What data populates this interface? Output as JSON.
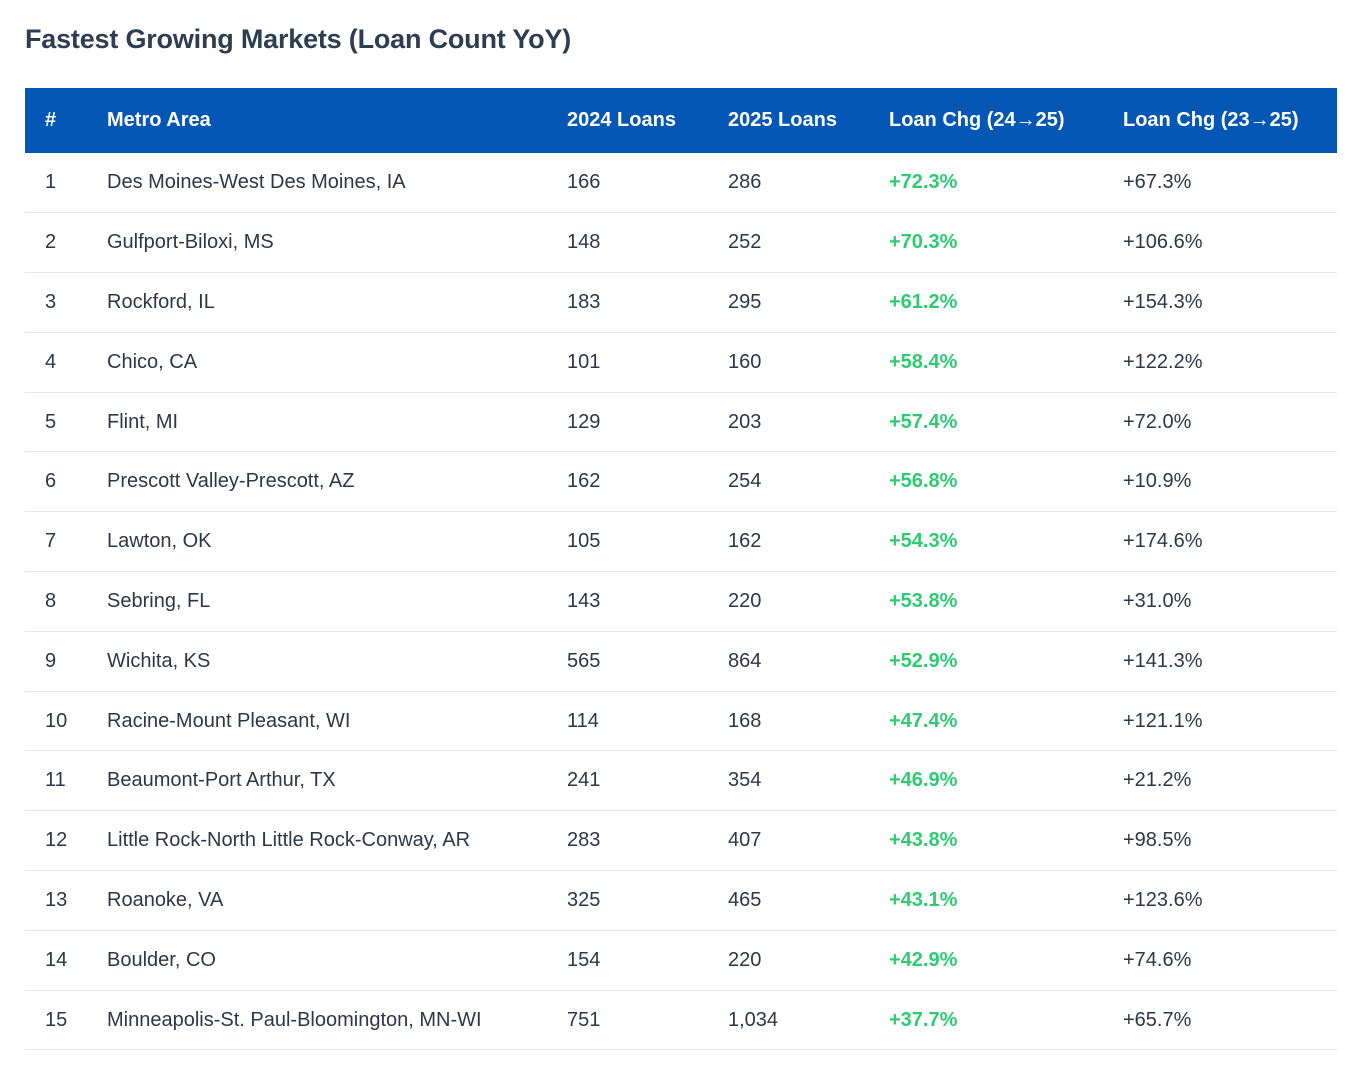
{
  "title": "Fastest Growing Markets (Loan Count YoY)",
  "colors": {
    "header_bg": "#0457b5",
    "positive_change": "#2ecc71",
    "title": "#2c3e50"
  },
  "table": {
    "headers": {
      "rank": "#",
      "metro": "Metro Area",
      "loans_2024": "2024 Loans",
      "loans_2025": "2025 Loans",
      "chg_24_25": "Loan Chg (24→25)",
      "chg_23_25": "Loan Chg (23→25)"
    },
    "rows": [
      {
        "rank": "1",
        "metro": "Des Moines-West Des Moines, IA",
        "loans_2024": "166",
        "loans_2025": "286",
        "chg_24_25": "+72.3%",
        "chg_23_25": "+67.3%"
      },
      {
        "rank": "2",
        "metro": "Gulfport-Biloxi, MS",
        "loans_2024": "148",
        "loans_2025": "252",
        "chg_24_25": "+70.3%",
        "chg_23_25": "+106.6%"
      },
      {
        "rank": "3",
        "metro": "Rockford, IL",
        "loans_2024": "183",
        "loans_2025": "295",
        "chg_24_25": "+61.2%",
        "chg_23_25": "+154.3%"
      },
      {
        "rank": "4",
        "metro": "Chico, CA",
        "loans_2024": "101",
        "loans_2025": "160",
        "chg_24_25": "+58.4%",
        "chg_23_25": "+122.2%"
      },
      {
        "rank": "5",
        "metro": "Flint, MI",
        "loans_2024": "129",
        "loans_2025": "203",
        "chg_24_25": "+57.4%",
        "chg_23_25": "+72.0%"
      },
      {
        "rank": "6",
        "metro": "Prescott Valley-Prescott, AZ",
        "loans_2024": "162",
        "loans_2025": "254",
        "chg_24_25": "+56.8%",
        "chg_23_25": "+10.9%"
      },
      {
        "rank": "7",
        "metro": "Lawton, OK",
        "loans_2024": "105",
        "loans_2025": "162",
        "chg_24_25": "+54.3%",
        "chg_23_25": "+174.6%"
      },
      {
        "rank": "8",
        "metro": "Sebring, FL",
        "loans_2024": "143",
        "loans_2025": "220",
        "chg_24_25": "+53.8%",
        "chg_23_25": "+31.0%"
      },
      {
        "rank": "9",
        "metro": "Wichita, KS",
        "loans_2024": "565",
        "loans_2025": "864",
        "chg_24_25": "+52.9%",
        "chg_23_25": "+141.3%"
      },
      {
        "rank": "10",
        "metro": "Racine-Mount Pleasant, WI",
        "loans_2024": "114",
        "loans_2025": "168",
        "chg_24_25": "+47.4%",
        "chg_23_25": "+121.1%"
      },
      {
        "rank": "11",
        "metro": "Beaumont-Port Arthur, TX",
        "loans_2024": "241",
        "loans_2025": "354",
        "chg_24_25": "+46.9%",
        "chg_23_25": "+21.2%"
      },
      {
        "rank": "12",
        "metro": "Little Rock-North Little Rock-Conway, AR",
        "loans_2024": "283",
        "loans_2025": "407",
        "chg_24_25": "+43.8%",
        "chg_23_25": "+98.5%"
      },
      {
        "rank": "13",
        "metro": "Roanoke, VA",
        "loans_2024": "325",
        "loans_2025": "465",
        "chg_24_25": "+43.1%",
        "chg_23_25": "+123.6%"
      },
      {
        "rank": "14",
        "metro": "Boulder, CO",
        "loans_2024": "154",
        "loans_2025": "220",
        "chg_24_25": "+42.9%",
        "chg_23_25": "+74.6%"
      },
      {
        "rank": "15",
        "metro": "Minneapolis-St. Paul-Bloomington, MN-WI",
        "loans_2024": "751",
        "loans_2025": "1,034",
        "chg_24_25": "+37.7%",
        "chg_23_25": "+65.7%"
      }
    ]
  }
}
